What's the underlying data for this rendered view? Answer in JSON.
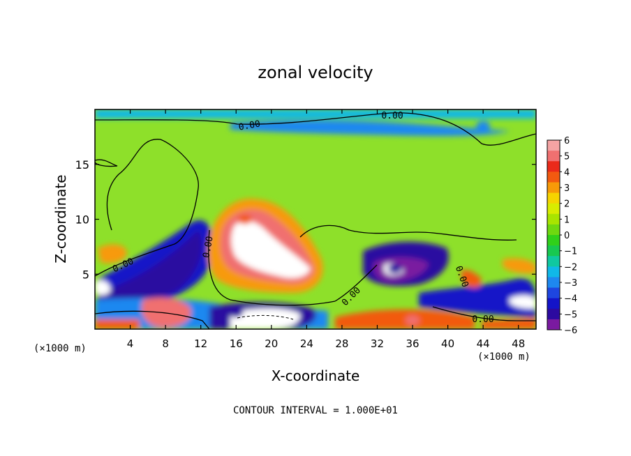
{
  "chart_data": {
    "type": "heatmap",
    "title": "zonal velocity",
    "xlabel": "X-coordinate",
    "ylabel": "Z-coordinate",
    "x_unit_label": "(×1000 m)",
    "z_unit_label": "(×1000 m)",
    "footnote": "CONTOUR INTERVAL = 1.000E+01",
    "x_ticks": [
      4,
      8,
      12,
      16,
      20,
      24,
      28,
      32,
      36,
      40,
      44,
      48
    ],
    "y_ticks": [
      5,
      10,
      15
    ],
    "xlim": [
      0,
      50
    ],
    "ylim": [
      0,
      20
    ],
    "colorbar": {
      "ticks": [
        6,
        5,
        4,
        3,
        2,
        1,
        0,
        -1,
        -2,
        -3,
        -4,
        -5,
        -6
      ],
      "range": [
        -6,
        6
      ],
      "colors": [
        "#f4a3a3",
        "#f07070",
        "#ea2a1a",
        "#f25a10",
        "#f79a08",
        "#f6d400",
        "#d9ec00",
        "#a8e400",
        "#6fd810",
        "#30d01a",
        "#18c850",
        "#10c8a0",
        "#10b8e8",
        "#1e88f0",
        "#1e46e0",
        "#1414c8",
        "#2c0aa0",
        "#7a1aa0"
      ]
    },
    "contour_labels": [
      "0.00",
      "0.00",
      "0.00",
      "0.00",
      "0.00",
      "0.00",
      "0.00"
    ],
    "features": [
      {
        "kind": "jet",
        "x": 20,
        "z": 7,
        "value": 6,
        "note": "strong positive (westerly) core"
      },
      {
        "kind": "positive",
        "x": 17,
        "z": 10,
        "value": 4
      },
      {
        "kind": "negative",
        "x": 9,
        "z": 6,
        "value": -5
      },
      {
        "kind": "negative",
        "x": 34,
        "z": 5.5,
        "value": -5
      },
      {
        "kind": "negative",
        "x": 44,
        "z": 18.5,
        "value": -3
      },
      {
        "kind": "negative",
        "x": 16,
        "z": 1.5,
        "value": -5
      },
      {
        "kind": "positive",
        "x": 8,
        "z": 1.5,
        "value": 5
      },
      {
        "kind": "positive",
        "x": 36,
        "z": 0.8,
        "value": 5
      },
      {
        "kind": "positive",
        "x": 2,
        "z": 7,
        "value": 3
      },
      {
        "kind": "positive",
        "x": 43,
        "z": 4.5,
        "value": 4
      }
    ]
  }
}
